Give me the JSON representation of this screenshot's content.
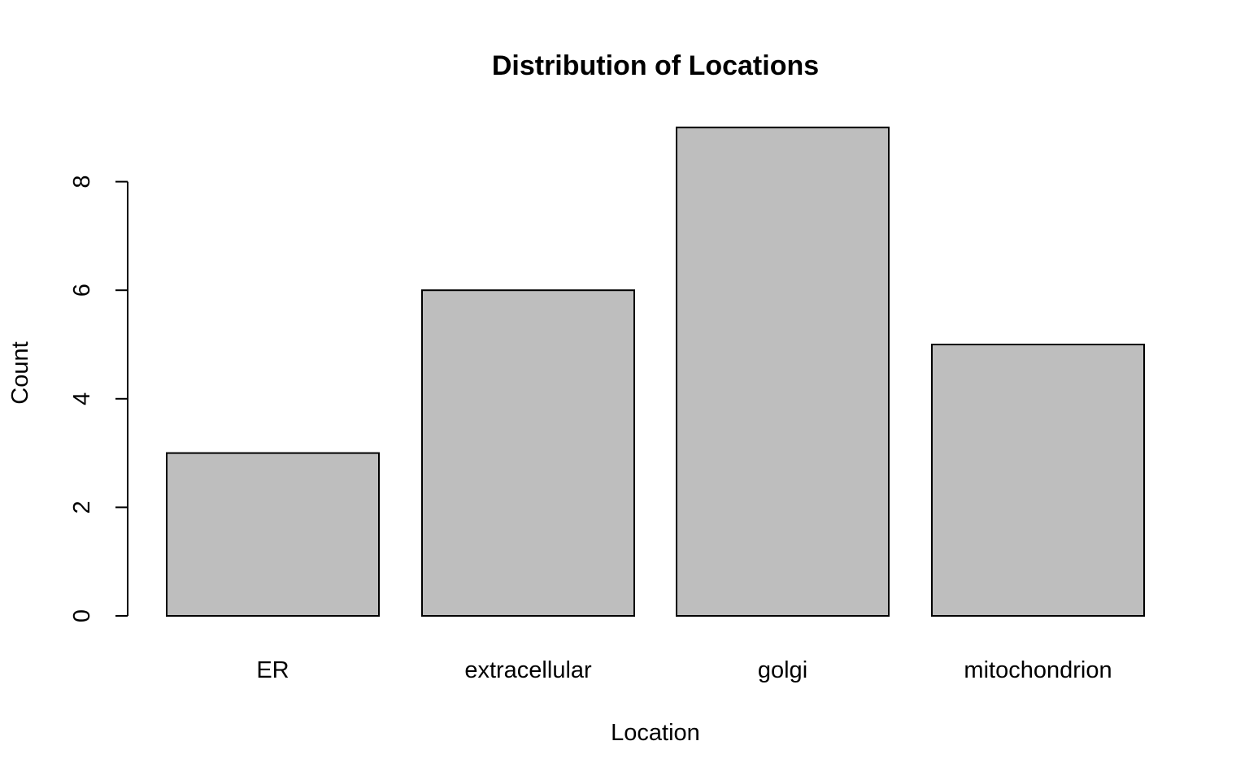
{
  "chart_data": {
    "type": "bar",
    "title": "Distribution of Locations",
    "xlabel": "Location",
    "ylabel": "Count",
    "categories": [
      "ER",
      "extracellular",
      "golgi",
      "mitochondrion"
    ],
    "values": [
      3,
      6,
      9,
      5
    ],
    "ylim": [
      0,
      9
    ],
    "yticks": [
      "0",
      "2",
      "4",
      "6",
      "8"
    ],
    "grid": false,
    "bar_color": "#bebebe",
    "border_color": "#000000"
  }
}
